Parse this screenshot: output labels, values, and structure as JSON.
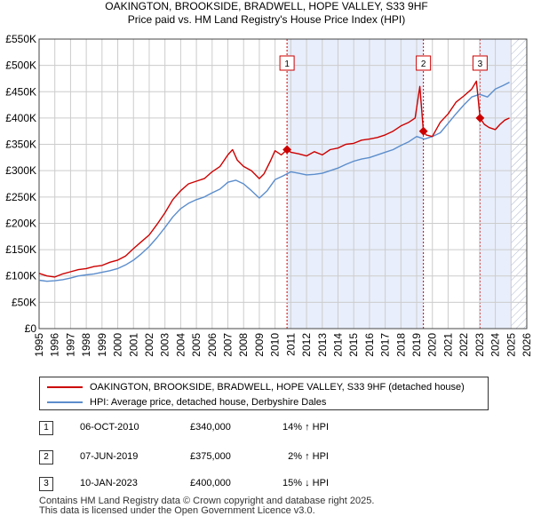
{
  "header": {
    "title": "OAKINGTON, BROOKSIDE, BRADWELL, HOPE VALLEY, S33 9HF",
    "subtitle": "Price paid vs. HM Land Registry's House Price Index (HPI)"
  },
  "colors": {
    "property_line": "#cc0000",
    "hpi_line": "#5b8dcc",
    "shade": "#e8eefb",
    "vline": "#cc0000",
    "grid": "#cccccc",
    "hatch": "#aab4cc"
  },
  "chart_data": {
    "type": "line",
    "title": "OAKINGTON, BROOKSIDE, BRADWELL, HOPE VALLEY, S33 9HF",
    "subtitle": "Price paid vs. HM Land Registry's House Price Index (HPI)",
    "xlabel": "",
    "ylabel": "",
    "xlim": [
      1995,
      2026
    ],
    "ylim": [
      0,
      550000
    ],
    "x_ticks": [
      "1995",
      "1996",
      "1997",
      "1998",
      "1999",
      "2000",
      "2001",
      "2002",
      "2003",
      "2004",
      "2005",
      "2006",
      "2007",
      "2008",
      "2009",
      "2010",
      "2011",
      "2012",
      "2013",
      "2014",
      "2015",
      "2016",
      "2017",
      "2018",
      "2019",
      "2020",
      "2021",
      "2022",
      "2023",
      "2024",
      "2025",
      "2026"
    ],
    "y_ticks": [
      {
        "value": 0,
        "label": "£0"
      },
      {
        "value": 50000,
        "label": "£50K"
      },
      {
        "value": 100000,
        "label": "£100K"
      },
      {
        "value": 150000,
        "label": "£150K"
      },
      {
        "value": 200000,
        "label": "£200K"
      },
      {
        "value": 250000,
        "label": "£250K"
      },
      {
        "value": 300000,
        "label": "£300K"
      },
      {
        "value": 350000,
        "label": "£350K"
      },
      {
        "value": 400000,
        "label": "£400K"
      },
      {
        "value": 450000,
        "label": "£450K"
      },
      {
        "value": 500000,
        "label": "£500K"
      },
      {
        "value": 550000,
        "label": "£550K"
      }
    ],
    "grid": true,
    "shaded_periods": [
      {
        "from": 2010.76,
        "to": 2019.43
      },
      {
        "from": 2023.03,
        "to": 2025.0
      }
    ],
    "hatched_after": 2025.0,
    "series": [
      {
        "name": "OAKINGTON, BROOKSIDE, BRADWELL, HOPE VALLEY, S33 9HF (detached house)",
        "color": "#cc0000",
        "x": [
          1995,
          1995.5,
          1996,
          1996.5,
          1997,
          1997.5,
          1998,
          1998.5,
          1999,
          1999.5,
          2000,
          2000.5,
          2001,
          2001.5,
          2002,
          2002.5,
          2003,
          2003.5,
          2004,
          2004.5,
          2005,
          2005.5,
          2006,
          2006.5,
          2007,
          2007.3,
          2007.6,
          2008,
          2008.5,
          2009,
          2009.3,
          2009.7,
          2010,
          2010.4,
          2010.76,
          2011,
          2011.5,
          2012,
          2012.5,
          2013,
          2013.5,
          2014,
          2014.5,
          2015,
          2015.5,
          2016,
          2016.5,
          2017,
          2017.5,
          2018,
          2018.5,
          2018.9,
          2019.2,
          2019.43,
          2019.6,
          2020,
          2020.5,
          2021,
          2021.5,
          2022,
          2022.5,
          2022.8,
          2023.03,
          2023.3,
          2023.6,
          2024,
          2024.3,
          2024.6,
          2024.9
        ],
        "values": [
          105000,
          100000,
          98000,
          104000,
          108000,
          112000,
          114000,
          118000,
          120000,
          126000,
          130000,
          138000,
          152000,
          165000,
          178000,
          198000,
          220000,
          245000,
          262000,
          275000,
          280000,
          285000,
          298000,
          308000,
          330000,
          340000,
          320000,
          308000,
          300000,
          285000,
          294000,
          318000,
          338000,
          330000,
          340000,
          335000,
          332000,
          328000,
          336000,
          330000,
          340000,
          343000,
          350000,
          352000,
          358000,
          360000,
          363000,
          368000,
          375000,
          385000,
          392000,
          400000,
          460000,
          375000,
          368000,
          365000,
          392000,
          408000,
          430000,
          442000,
          455000,
          470000,
          400000,
          388000,
          382000,
          378000,
          388000,
          396000,
          400000
        ]
      },
      {
        "name": "HPI: Average price, detached house, Derbyshire Dales",
        "color": "#5b8dcc",
        "x": [
          1995,
          1995.5,
          1996,
          1996.5,
          1997,
          1997.5,
          1998,
          1998.5,
          1999,
          1999.5,
          2000,
          2000.5,
          2001,
          2001.5,
          2002,
          2002.5,
          2003,
          2003.5,
          2004,
          2004.5,
          2005,
          2005.5,
          2006,
          2006.5,
          2007,
          2007.5,
          2008,
          2008.5,
          2009,
          2009.5,
          2010,
          2010.5,
          2011,
          2011.5,
          2012,
          2012.5,
          2013,
          2013.5,
          2014,
          2014.5,
          2015,
          2015.5,
          2016,
          2016.5,
          2017,
          2017.5,
          2018,
          2018.5,
          2019,
          2019.5,
          2020,
          2020.5,
          2021,
          2021.5,
          2022,
          2022.5,
          2023,
          2023.5,
          2024,
          2024.5,
          2024.9
        ],
        "values": [
          92000,
          90000,
          91000,
          93000,
          96000,
          100000,
          102000,
          104000,
          107000,
          110000,
          114000,
          121000,
          130000,
          142000,
          156000,
          173000,
          192000,
          212000,
          228000,
          238000,
          245000,
          250000,
          258000,
          265000,
          278000,
          282000,
          275000,
          262000,
          248000,
          262000,
          283000,
          290000,
          298000,
          295000,
          292000,
          293000,
          295000,
          300000,
          305000,
          312000,
          318000,
          322000,
          325000,
          330000,
          335000,
          340000,
          348000,
          355000,
          365000,
          360000,
          365000,
          372000,
          390000,
          408000,
          425000,
          440000,
          445000,
          440000,
          455000,
          462000,
          468000
        ]
      }
    ],
    "annotations": [
      {
        "label": "1",
        "x": 2010.76,
        "value": 340000
      },
      {
        "label": "2",
        "x": 2019.43,
        "value": 375000
      },
      {
        "label": "3",
        "x": 2023.03,
        "value": 400000
      }
    ]
  },
  "legend": {
    "property": "OAKINGTON, BROOKSIDE, BRADWELL, HOPE VALLEY, S33 9HF (detached house)",
    "hpi": "HPI: Average price, detached house, Derbyshire Dales"
  },
  "sales": [
    {
      "num": "1",
      "date": "06-OCT-2010",
      "price": "£340,000",
      "hpi": "14% ↑ HPI"
    },
    {
      "num": "2",
      "date": "07-JUN-2019",
      "price": "£375,000",
      "hpi": "2% ↑ HPI"
    },
    {
      "num": "3",
      "date": "10-JAN-2023",
      "price": "£400,000",
      "hpi": "15% ↓ HPI"
    }
  ],
  "footer": {
    "line1": "Contains HM Land Registry data © Crown copyright and database right 2025.",
    "line2": "This data is licensed under the Open Government Licence v3.0."
  }
}
